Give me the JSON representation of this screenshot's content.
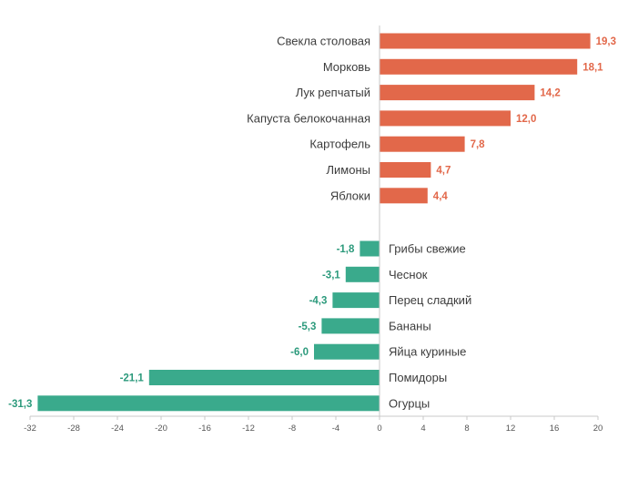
{
  "chart_data": {
    "type": "bar",
    "orientation": "horizontal",
    "xlim": [
      -32,
      20
    ],
    "xticks": [
      "-32",
      "-28",
      "-24",
      "-20",
      "-16",
      "-12",
      "-8",
      "-4",
      "0",
      "4",
      "8",
      "12",
      "16",
      "20"
    ],
    "grid": false,
    "colors": {
      "positive": "#e2684a",
      "negative": "#3aaa8c",
      "positive_label": "#e2684a",
      "negative_label": "#2c9a7c"
    },
    "groups": [
      {
        "items": [
          {
            "category": "Свекла столовая",
            "value": 19.3,
            "label": "19,3"
          },
          {
            "category": "Морковь",
            "value": 18.1,
            "label": "18,1"
          },
          {
            "category": "Лук репчатый",
            "value": 14.2,
            "label": "14,2"
          },
          {
            "category": "Капуста белокочанная",
            "value": 12.0,
            "label": "12,0"
          },
          {
            "category": "Картофель",
            "value": 7.8,
            "label": "7,8"
          },
          {
            "category": "Лимоны",
            "value": 4.7,
            "label": "4,7"
          },
          {
            "category": "Яблоки",
            "value": 4.4,
            "label": "4,4"
          }
        ]
      },
      {
        "items": [
          {
            "category": "Грибы свежие",
            "value": -1.8,
            "label": "-1,8"
          },
          {
            "category": "Чеснок",
            "value": -3.1,
            "label": "-3,1"
          },
          {
            "category": "Перец сладкий",
            "value": -4.3,
            "label": "-4,3"
          },
          {
            "category": "Бананы",
            "value": -5.3,
            "label": "-5,3"
          },
          {
            "category": "Яйца куриные",
            "value": -6.0,
            "label": "-6,0"
          },
          {
            "category": "Помидоры",
            "value": -21.1,
            "label": "-21,1"
          },
          {
            "category": "Огурцы",
            "value": -31.3,
            "label": "-31,3"
          }
        ]
      }
    ]
  }
}
